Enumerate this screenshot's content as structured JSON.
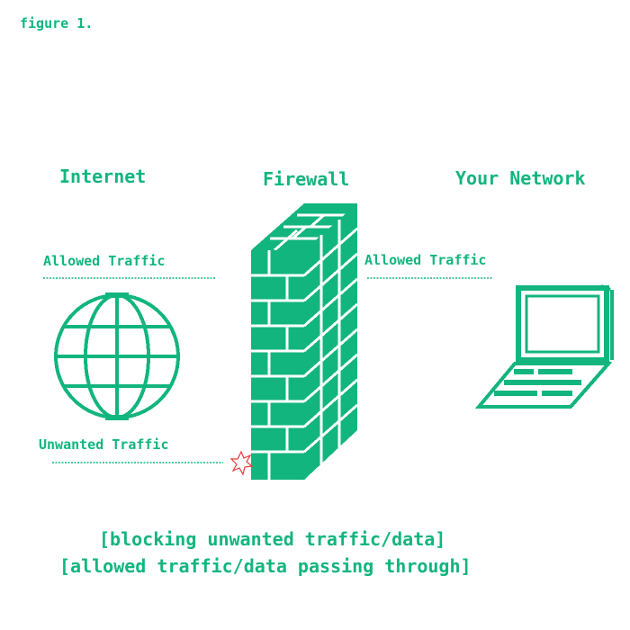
{
  "caption": "figure 1.",
  "columns": {
    "internet": "Internet",
    "firewall": "Firewall",
    "network": "Your Network"
  },
  "flows": {
    "allowed_in": "Allowed Traffic",
    "allowed_out": "Allowed Traffic",
    "unwanted": "Unwanted Traffic"
  },
  "footer": {
    "line1": "[blocking unwanted traffic/data]",
    "line2": "[allowed traffic/data passing through]"
  },
  "colors": {
    "accent": "#12b57d",
    "blocked": "#e83a3a"
  },
  "icons": [
    "globe-icon",
    "firewall-brick-wall-icon",
    "laptop-icon",
    "blocked-burst-icon"
  ]
}
